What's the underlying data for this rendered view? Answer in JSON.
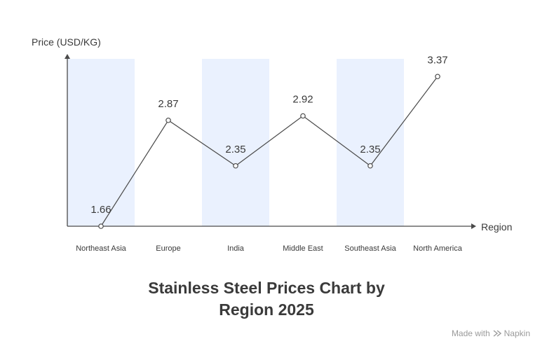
{
  "chart_data": {
    "type": "line",
    "title_line1": "Stainless Steel Prices Chart by",
    "title_line2": "Region 2025",
    "xlabel": "Region",
    "ylabel": "Price (USD/KG)",
    "categories": [
      "Northeast Asia",
      "Europe",
      "India",
      "Middle East",
      "Southeast Asia",
      "North America"
    ],
    "values": [
      1.66,
      2.87,
      2.35,
      2.92,
      2.35,
      3.37
    ],
    "value_labels": [
      "1.66",
      "2.87",
      "2.35",
      "2.92",
      "2.35",
      "3.37"
    ],
    "grid": false,
    "band_color": "#eaf1fe",
    "line_color": "#4a4a4a"
  },
  "footer": {
    "made_with": "Made with",
    "brand": "Napkin"
  }
}
